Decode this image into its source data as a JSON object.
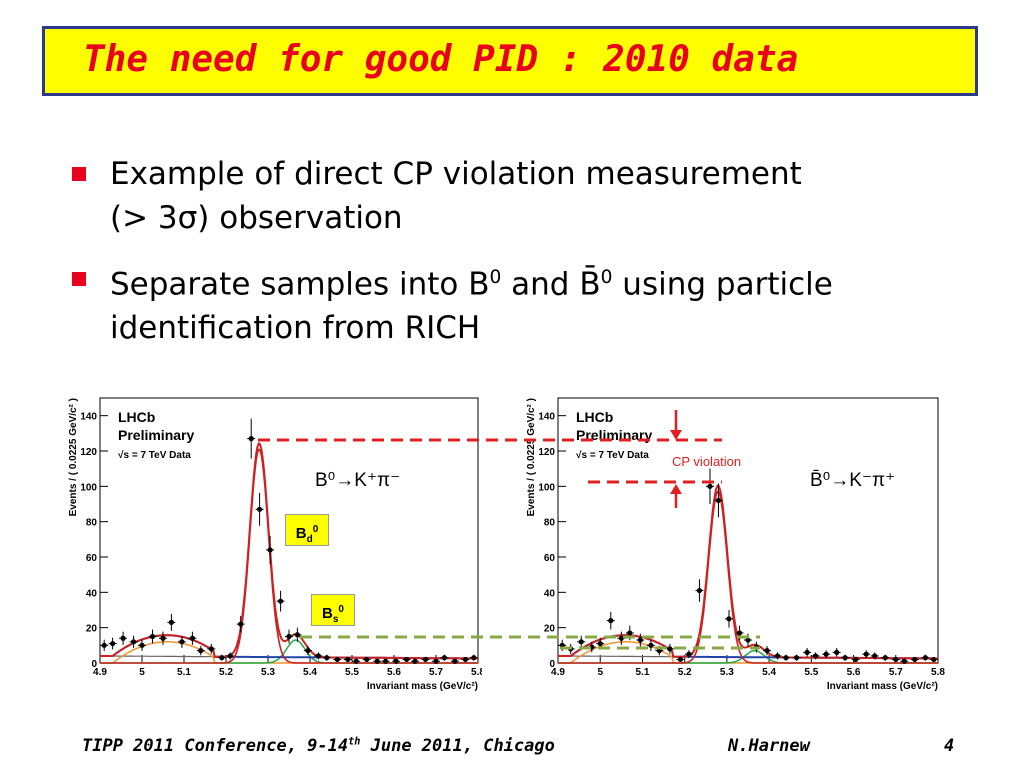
{
  "title": "The need for good PID : 2010 data",
  "bullets": [
    {
      "line1": "Example of direct CP violation measurement",
      "line2": "(> 3σ) observation"
    },
    {
      "pre": "Separate samples into B",
      "sup1": "0",
      "mid": " and B̄",
      "sup2": "0",
      "post": " using particle",
      "line2": "identification from RICH"
    }
  ],
  "footer": {
    "conference": "TIPP 2011 Conference, 9-14",
    "th": "th",
    "rest": " June 2011, Chicago",
    "author": "N.Harnew",
    "page": "4"
  },
  "annotations": {
    "bd": "B",
    "bd_sub": "d",
    "bd_sup": "0",
    "bs": "B",
    "bs_sub": "s",
    "bs_sup": "0",
    "cp_violation": "CP violation"
  },
  "colors": {
    "title_bg": "#ffff00",
    "title_text": "#e8001c",
    "title_border": "#2b3a8c",
    "fit_total": "#cc2222",
    "fit_bkg": "#2244aa",
    "fit_comb": "#f0962a",
    "fit_bs": "#22aa44",
    "dash_red": "#e02020",
    "dash_green": "#88aa44"
  },
  "chart_data": [
    {
      "type": "scatter",
      "panel": "left",
      "labels": [
        "LHCb",
        "Preliminary",
        "√s = 7 TeV Data"
      ],
      "decay": "B⁰→K⁺π⁻",
      "xlabel": "Invariant mass (GeV/c²)",
      "ylabel": "Events / ( 0.0225 GeV/c² )",
      "xlim": [
        4.9,
        5.8
      ],
      "ylim": [
        0,
        150
      ],
      "xticks": [
        "4.9",
        "5",
        "5.1",
        "5.2",
        "5.3",
        "5.4",
        "5.5",
        "5.6",
        "5.7",
        "5.8"
      ],
      "yticks": [
        "0",
        "20",
        "40",
        "60",
        "80",
        "100",
        "120",
        "140"
      ],
      "x": [
        4.91,
        4.93,
        4.955,
        4.98,
        5.0,
        5.025,
        5.05,
        5.07,
        5.095,
        5.12,
        5.14,
        5.165,
        5.19,
        5.21,
        5.235,
        5.26,
        5.28,
        5.305,
        5.33,
        5.35,
        5.37,
        5.395,
        5.42,
        5.44,
        5.465,
        5.49,
        5.51,
        5.535,
        5.56,
        5.58,
        5.605,
        5.63,
        5.65,
        5.675,
        5.7,
        5.72,
        5.745,
        5.77,
        5.79
      ],
      "y": [
        10,
        11,
        14,
        12,
        10,
        15,
        14,
        23,
        12,
        14,
        7,
        8,
        3,
        4,
        22,
        127,
        87,
        64,
        35,
        15,
        16,
        7,
        4,
        3,
        2,
        2,
        1,
        2,
        1,
        1,
        1,
        2,
        1,
        2,
        1,
        3,
        1,
        2,
        3
      ]
    },
    {
      "type": "scatter",
      "panel": "right",
      "labels": [
        "LHCb",
        "Preliminary",
        "√s = 7 TeV Data"
      ],
      "decay": "B̄⁰→K⁻π⁺",
      "xlabel": "Invariant mass (GeV/c²)",
      "ylabel": "Events / ( 0.0225 GeV/c² )",
      "xlim": [
        4.9,
        5.8
      ],
      "ylim": [
        0,
        150
      ],
      "xticks": [
        "4.9",
        "5",
        "5.1",
        "5.2",
        "5.3",
        "5.4",
        "5.5",
        "5.6",
        "5.7",
        "5.8"
      ],
      "yticks": [
        "0",
        "20",
        "40",
        "60",
        "80",
        "100",
        "120",
        "140"
      ],
      "x": [
        4.91,
        4.93,
        4.955,
        4.98,
        5.0,
        5.025,
        5.05,
        5.07,
        5.095,
        5.12,
        5.14,
        5.165,
        5.19,
        5.21,
        5.235,
        5.26,
        5.28,
        5.305,
        5.33,
        5.35,
        5.37,
        5.395,
        5.42,
        5.44,
        5.465,
        5.49,
        5.51,
        5.535,
        5.56,
        5.58,
        5.605,
        5.63,
        5.65,
        5.675,
        5.7,
        5.72,
        5.745,
        5.77,
        5.79
      ],
      "y": [
        10,
        8,
        12,
        9,
        11,
        24,
        14,
        17,
        13,
        10,
        7,
        8,
        2,
        5,
        41,
        100,
        92,
        25,
        17,
        13,
        9,
        7,
        4,
        3,
        3,
        6,
        4,
        5,
        6,
        3,
        2,
        5,
        4,
        3,
        2,
        1,
        2,
        3,
        2
      ]
    }
  ]
}
